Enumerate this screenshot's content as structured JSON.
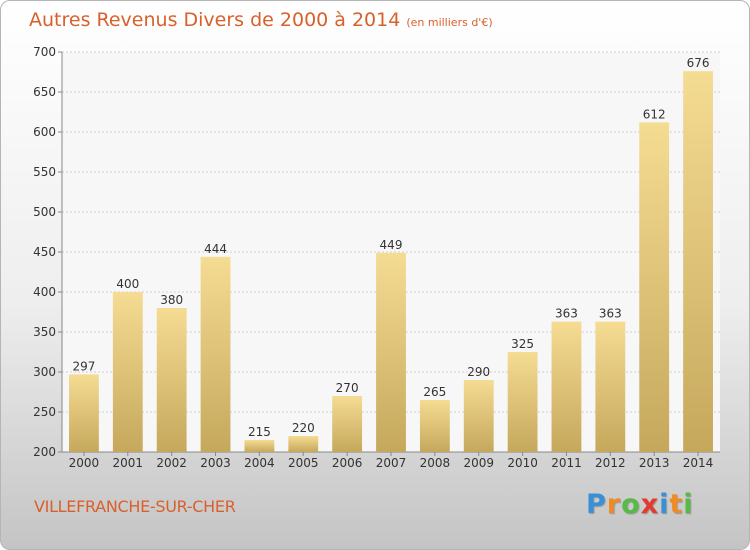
{
  "header": {
    "title": "Autres Revenus Divers de 2000 à 2014",
    "subtitle": "(en milliers d'€)"
  },
  "footer": {
    "city": "VILLEFRANCHE-SUR-CHER",
    "logo_letters": [
      "P",
      "r",
      "o",
      "x",
      "i",
      "t",
      "i"
    ],
    "logo_colors": [
      "#3a8fd6",
      "#f08a24",
      "#58b947",
      "#e23a2e",
      "#3a8fd6",
      "#f08a24",
      "#58b947"
    ]
  },
  "chart_data": {
    "type": "bar",
    "categories": [
      "2000",
      "2001",
      "2002",
      "2003",
      "2004",
      "2005",
      "2006",
      "2007",
      "2008",
      "2009",
      "2010",
      "2011",
      "2012",
      "2013",
      "2014"
    ],
    "values": [
      297,
      400,
      380,
      444,
      215,
      220,
      270,
      449,
      265,
      290,
      325,
      363,
      363,
      612,
      676
    ],
    "yticks": [
      200,
      250,
      300,
      350,
      400,
      450,
      500,
      550,
      600,
      650,
      700
    ],
    "ylim": [
      200,
      700
    ],
    "grid": true,
    "bar_color_top": "#f5dc93",
    "bar_color_bottom": "#c5a85c"
  }
}
